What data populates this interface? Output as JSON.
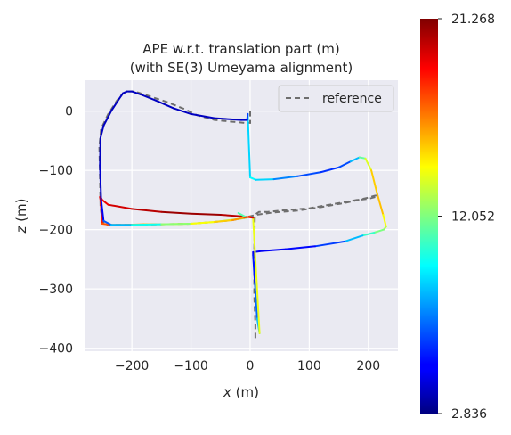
{
  "chart_data": {
    "type": "line",
    "title_line1": "APE w.r.t. translation part (m)",
    "title_line2": "(with SE(3) Umeyama alignment)",
    "xlabel_var": "x",
    "xlabel_unit": " (m)",
    "ylabel_var": "z",
    "ylabel_unit": " (m)",
    "xlim": [
      -280,
      250
    ],
    "ylim": [
      -405,
      52
    ],
    "xticks": [
      -200,
      -100,
      0,
      100,
      200
    ],
    "xtick_labels": [
      "−200",
      "−100",
      "0",
      "100",
      "200"
    ],
    "yticks": [
      0,
      -100,
      -200,
      -300,
      -400
    ],
    "ytick_labels": [
      "0",
      "−100",
      "−200",
      "−300",
      "−400"
    ],
    "grid": true,
    "legend_position": "top-right",
    "legend": {
      "label": "reference",
      "style": "dashed",
      "color": "#6e6e6e"
    },
    "colorbar": {
      "min": 2.836,
      "max": 21.268,
      "tick_values": [
        21.268,
        12.052,
        2.836
      ],
      "tick_labels": [
        "21.268",
        "12.052",
        "2.836"
      ],
      "colormap": "jet"
    },
    "reference_path": {
      "name": "reference",
      "x": [
        0,
        0,
        -10,
        -60,
        -90,
        -110,
        -140,
        -170,
        -195,
        -205,
        -215,
        -225,
        -240,
        -252,
        -255,
        -254,
        -253,
        -250,
        -245,
        -200,
        -150,
        -100,
        -60,
        -30,
        -10,
        10,
        40,
        80,
        120,
        160,
        200,
        210,
        215,
        212,
        200,
        180,
        140,
        100,
        60,
        30,
        15,
        8,
        7,
        7,
        9,
        9
      ],
      "y": [
        0,
        -20,
        -20,
        -15,
        -7,
        3,
        15,
        25,
        33,
        33,
        30,
        18,
        -5,
        -30,
        -60,
        -110,
        -160,
        -185,
        -192,
        -192,
        -191,
        -190,
        -187,
        -184,
        -180,
        -175,
        -171,
        -168,
        -162,
        -155,
        -146,
        -143,
        -142,
        -145,
        -148,
        -150,
        -157,
        -164,
        -167,
        -170,
        -170,
        -175,
        -235,
        -310,
        -360,
        -385
      ]
    },
    "estimate_path": {
      "x": [
        -4,
        0,
        10,
        40,
        80,
        120,
        150,
        170,
        185,
        195,
        205,
        215,
        225,
        230,
        226,
        210,
        190,
        160,
        110,
        60,
        20,
        5,
        5,
        8,
        12,
        16,
        5,
        -10,
        -50,
        -100,
        -150,
        -200,
        -240,
        -250,
        -253,
        -254,
        -253,
        -250,
        -235,
        -210,
        -180,
        -150,
        -100,
        -60,
        -20,
        -5,
        -20
      ],
      "y": [
        -5,
        -112,
        -116,
        -115,
        -110,
        -103,
        -95,
        -85,
        -78,
        -80,
        -100,
        -140,
        -175,
        -195,
        -200,
        -205,
        -210,
        -220,
        -228,
        -233,
        -236,
        -238,
        -243,
        -290,
        -350,
        -375,
        -180,
        -178,
        -175,
        -173,
        -170,
        -165,
        -158,
        -150,
        -145,
        -145,
        -150,
        -190,
        -192,
        -192,
        -191,
        -191,
        -190,
        -187,
        -182,
        -180,
        -172
      ],
      "error": [
        8.5,
        9.5,
        10.0,
        8.0,
        7.0,
        6.0,
        6.0,
        7.0,
        10.0,
        13.0,
        14.5,
        16.0,
        15.0,
        13.5,
        12.5,
        11.5,
        10.0,
        7.0,
        5.5,
        5.0,
        5.0,
        5.0,
        5.0,
        6.0,
        8.0,
        9.0,
        19.0,
        20.0,
        20.5,
        21.0,
        20.5,
        20.0,
        19.5,
        19.0,
        18.5,
        20.0,
        19.0,
        18.0,
        17.0,
        16.5,
        16.0,
        15.0,
        14.0,
        13.0,
        12.5,
        12.0,
        10.5
      ]
    },
    "estimate_path_2": {
      "x": [
        -4,
        -5,
        -15,
        -60,
        -100,
        -130,
        -160,
        -185,
        -200,
        -208,
        -215,
        -222,
        -235,
        -248,
        -253,
        -254,
        -252,
        -248,
        -235,
        -200,
        -150,
        -100,
        -60,
        -30,
        -10,
        0
      ],
      "y": [
        -5,
        -15,
        -15,
        -12,
        -5,
        5,
        18,
        28,
        33,
        33,
        30,
        20,
        0,
        -25,
        -45,
        -90,
        -150,
        -185,
        -192,
        -192,
        -191,
        -190,
        -187,
        -184,
        -180,
        -178
      ],
      "error": [
        8.0,
        4.5,
        4.0,
        4.0,
        4.0,
        4.0,
        4.0,
        4.0,
        4.0,
        4.0,
        4.0,
        4.0,
        4.0,
        4.0,
        4.0,
        4.0,
        4.5,
        5.5,
        8.0,
        9.0,
        11.0,
        13.5,
        15.0,
        15.5,
        17.0,
        18.5
      ]
    }
  }
}
